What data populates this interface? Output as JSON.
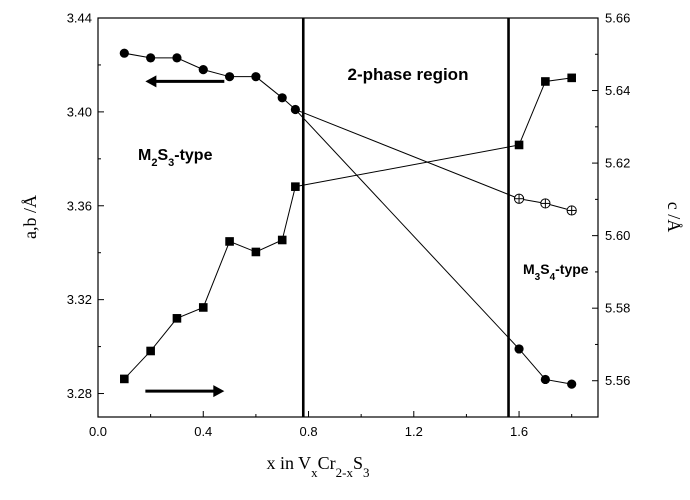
{
  "chart_data": {
    "type": "scatter",
    "xlabel_parts": [
      "x in V",
      "x",
      "Cr",
      "2-x",
      "S",
      "3"
    ],
    "ylabel_left": "a,b /Å",
    "ylabel_right": "c /Å",
    "xlim": [
      0.0,
      1.9
    ],
    "ylim_left": [
      3.27,
      3.44
    ],
    "ylim_right": [
      5.55,
      5.66
    ],
    "xticks": [
      0.0,
      0.4,
      0.8,
      1.2,
      1.6
    ],
    "xtick_labels": [
      "0.0",
      "0.4",
      "0.8",
      "1.2",
      "1.6"
    ],
    "yticks_left": [
      3.28,
      3.32,
      3.36,
      3.4,
      3.44
    ],
    "ytick_labels_left": [
      "3.28",
      "3.32",
      "3.36",
      "3.40",
      "3.44"
    ],
    "yticks_right": [
      5.56,
      5.58,
      5.6,
      5.62,
      5.64,
      5.66
    ],
    "ytick_labels_right": [
      "5.56",
      "5.58",
      "5.60",
      "5.62",
      "5.64",
      "5.66"
    ],
    "series": [
      {
        "marker": "circle-filled",
        "axis": "left",
        "x": [
          0.1,
          0.2,
          0.3,
          0.4,
          0.5,
          0.6,
          0.7,
          0.75
        ],
        "y": [
          3.425,
          3.423,
          3.423,
          3.418,
          3.415,
          3.415,
          3.406,
          3.401
        ]
      },
      {
        "marker": "square-filled",
        "axis": "right",
        "x": [
          0.1,
          0.2,
          0.3,
          0.4,
          0.5,
          0.6,
          0.7,
          0.75
        ],
        "y": [
          5.5605,
          5.5682,
          5.5772,
          5.5802,
          5.5984,
          5.5955,
          5.5988,
          5.6135
        ]
      },
      {
        "marker": "circle-crossed",
        "axis": "left",
        "x": [
          1.6,
          1.7,
          1.8
        ],
        "y": [
          3.363,
          3.361,
          3.358
        ]
      },
      {
        "marker": "circle-filled",
        "axis": "left",
        "x": [
          1.6,
          1.7,
          1.8
        ],
        "y": [
          3.299,
          3.286,
          3.284
        ]
      },
      {
        "marker": "square-filled",
        "axis": "right",
        "x": [
          1.6,
          1.7,
          1.8
        ],
        "y": [
          5.625,
          5.6425,
          5.6435
        ]
      }
    ],
    "tie_lines": [
      {
        "from": {
          "x": 0.75,
          "y": 3.401,
          "axis": "left"
        },
        "to": {
          "x": 1.6,
          "y": 3.363,
          "axis": "left"
        }
      },
      {
        "from": {
          "x": 0.75,
          "y": 3.401,
          "axis": "left"
        },
        "to": {
          "x": 1.6,
          "y": 3.299,
          "axis": "left"
        }
      },
      {
        "from": {
          "x": 0.75,
          "y": 5.6135,
          "axis": "right"
        },
        "to": {
          "x": 1.6,
          "y": 5.625,
          "axis": "right"
        }
      }
    ],
    "phase_boundaries_x": [
      0.78,
      1.56
    ],
    "annotations": {
      "two_phase": "2-phase region",
      "m2s3": [
        "M",
        "2",
        "S",
        "3",
        "-type"
      ],
      "m3s4": [
        "M",
        "3",
        "S",
        "4",
        "-type"
      ]
    },
    "arrows": [
      {
        "direction": "left",
        "from_x": 0.48,
        "to_x": 0.18,
        "y": 3.413,
        "axis": "left"
      },
      {
        "direction": "right",
        "from_x": 0.18,
        "to_x": 0.48,
        "y": 3.281,
        "axis": "left"
      }
    ]
  }
}
